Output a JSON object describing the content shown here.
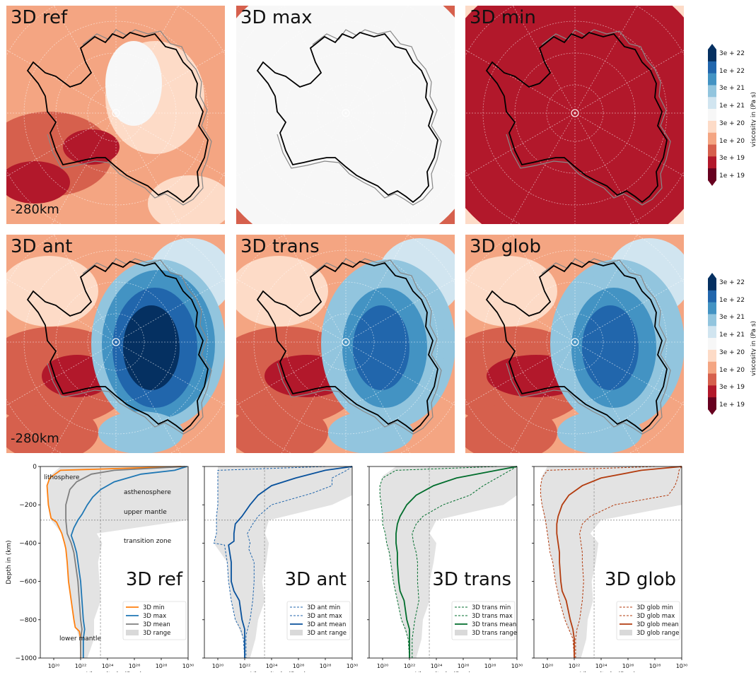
{
  "maps": {
    "row1": [
      {
        "label": "3D ref",
        "depth": "-280km",
        "pattern": "ref"
      },
      {
        "label": "3D max",
        "depth": "",
        "pattern": "max"
      },
      {
        "label": "3D min",
        "depth": "",
        "pattern": "min"
      }
    ],
    "row2": [
      {
        "label": "3D ant",
        "depth": "-280km",
        "pattern": "ant"
      },
      {
        "label": "3D trans",
        "depth": "",
        "pattern": "trans"
      },
      {
        "label": "3D glob",
        "depth": "",
        "pattern": "glob"
      }
    ]
  },
  "colorbar": {
    "title": "viscosity in (Pa s)",
    "ticks": [
      "3e + 22",
      "1e + 22",
      "3e + 21",
      "1e + 21",
      "3e + 20",
      "1e + 20",
      "3e + 19",
      "1e + 19"
    ],
    "colors": [
      "#053061",
      "#2166ac",
      "#4393c3",
      "#92c5de",
      "#d1e5f0",
      "#f7f7f7",
      "#fddbc7",
      "#f4a582",
      "#d6604d",
      "#b2182b",
      "#67001f"
    ]
  },
  "profile_labels": {
    "xlabel": "Viscosity in (Pa s)",
    "ylabel": "Depth in (km)",
    "yticks": [
      "0",
      "−200",
      "−400",
      "−600",
      "−800",
      "−1000"
    ],
    "xticks": [
      "10²⁰",
      "10²²",
      "10²⁴",
      "10²⁶",
      "10²⁸",
      "10³⁰"
    ],
    "annotations": [
      "lithosphere",
      "asthenosphere",
      "upper mantle",
      "transition zone",
      "lower  mantle"
    ]
  },
  "chart_data": [
    {
      "type": "line",
      "title": "3D ref",
      "xlabel": "Viscosity in (Pa s)",
      "ylabel": "Depth in (km)",
      "xscale": "log",
      "xlim": [
        1e+19,
        1e+30
      ],
      "ylim": [
        -1000,
        0
      ],
      "reference_lines": {
        "vertical_x": 3e+23,
        "horizontal_y": -280
      },
      "legend": "bottom-right",
      "series": [
        {
          "name": "3D min",
          "color": "#ff7f0e",
          "style": "solid",
          "depth": [
            0,
            -20,
            -40,
            -60,
            -100,
            -200,
            -270,
            -290,
            -350,
            -400,
            -430,
            -500,
            -600,
            -700,
            -800,
            -840,
            -860,
            -900,
            -1000
          ],
          "log_visc": [
            29.5,
            20.5,
            20.1,
            19.7,
            19.5,
            19.6,
            19.8,
            20.2,
            20.6,
            20.8,
            20.9,
            21.0,
            21.1,
            21.3,
            21.5,
            21.6,
            21.9,
            22.0,
            22.0
          ]
        },
        {
          "name": "3D max",
          "color": "#1f77b4",
          "style": "solid",
          "depth": [
            0,
            -20,
            -40,
            -80,
            -120,
            -160,
            -200,
            -250,
            -280,
            -320,
            -360,
            -400,
            -450,
            -500,
            -600,
            -700,
            -800,
            -850,
            -900,
            -1000
          ],
          "log_visc": [
            29.9,
            29.0,
            26.5,
            24.5,
            23.5,
            22.9,
            22.5,
            22.1,
            21.8,
            21.5,
            21.3,
            21.5,
            21.7,
            21.8,
            22.0,
            22.1,
            22.2,
            22.3,
            22.2,
            22.2
          ]
        },
        {
          "name": "3D mean",
          "color": "#7f7f7f",
          "style": "solid",
          "depth": [
            0,
            -20,
            -40,
            -80,
            -120,
            -200,
            -280,
            -350,
            -400,
            -450,
            -500,
            -600,
            -700,
            -800,
            -850,
            -900,
            -1000
          ],
          "log_visc": [
            29.8,
            24.5,
            22.8,
            21.7,
            21.2,
            20.9,
            20.9,
            21.0,
            21.3,
            21.5,
            21.6,
            21.8,
            21.9,
            22.0,
            22.1,
            22.0,
            22.0
          ]
        }
      ],
      "range": {
        "name": "3D range",
        "depth": [
          0,
          -50,
          -100,
          -150,
          -200,
          -280,
          -350,
          -400,
          -500,
          -600,
          -700,
          -800,
          -900,
          -1000
        ],
        "log_min": [
          20.5,
          19.7,
          19.5,
          19.5,
          19.6,
          19.8,
          20.6,
          20.8,
          21.0,
          21.1,
          21.3,
          21.5,
          21.9,
          22.0
        ],
        "log_max": [
          30.0,
          30.0,
          30.0,
          30.0,
          30.0,
          30.0,
          23.2,
          23.6,
          23.3,
          23.4,
          23.5,
          23.0,
          23.0,
          22.5
        ]
      }
    },
    {
      "type": "line",
      "title": "3D ant",
      "xlabel": "Viscosity in (Pa s)",
      "xscale": "log",
      "xlim": [
        1e+19,
        1e+30
      ],
      "ylim": [
        -1000,
        0
      ],
      "reference_lines": {
        "vertical_x": 3e+23,
        "horizontal_y": -280
      },
      "legend": "bottom-right",
      "series": [
        {
          "name": "3D ant min",
          "color": "#2166ac",
          "style": "dashed",
          "depth": [
            0,
            -20,
            -60,
            -100,
            -150,
            -200,
            -260,
            -300,
            -350,
            -400,
            -410,
            -500,
            -600,
            -700,
            -800,
            -850,
            -900,
            -1000
          ],
          "log_visc": [
            28.0,
            20.0,
            20.0,
            20.0,
            20.0,
            20.0,
            19.9,
            19.9,
            19.9,
            19.7,
            20.5,
            20.7,
            20.8,
            21.0,
            21.3,
            21.7,
            21.9,
            22.0
          ]
        },
        {
          "name": "3D ant max",
          "color": "#2166ac",
          "style": "dashed",
          "depth": [
            0,
            -20,
            -60,
            -100,
            -140,
            -200,
            -260,
            -300,
            -350,
            -400,
            -430,
            -500,
            -600,
            -700,
            -800,
            -880,
            -1000
          ],
          "log_visc": [
            30.0,
            29.6,
            28.5,
            28.5,
            27.0,
            24.0,
            23.0,
            22.6,
            22.2,
            22.4,
            22.3,
            22.7,
            22.7,
            22.6,
            22.4,
            22.1,
            22.1
          ]
        },
        {
          "name": "3D ant mean",
          "color": "#08519c",
          "style": "solid",
          "depth": [
            0,
            -20,
            -60,
            -100,
            -150,
            -200,
            -260,
            -300,
            -350,
            -390,
            -410,
            -500,
            -600,
            -650,
            -700,
            -800,
            -850,
            -900,
            -1000
          ],
          "log_visc": [
            30.0,
            28.0,
            25.8,
            24.0,
            23.0,
            22.4,
            21.8,
            21.3,
            21.2,
            21.2,
            20.8,
            21.0,
            21.0,
            21.2,
            21.6,
            21.8,
            22.0,
            22.0,
            22.0
          ]
        }
      ],
      "range": {
        "name": "3D ant range",
        "depth": [
          0,
          -50,
          -100,
          -150,
          -200,
          -280,
          -350,
          -400,
          -500,
          -600,
          -700,
          -800,
          -900,
          -1000
        ],
        "log_min": [
          20.0,
          20.0,
          20.0,
          20.0,
          20.0,
          19.9,
          19.9,
          19.7,
          20.7,
          20.8,
          21.0,
          21.3,
          21.9,
          22.0
        ],
        "log_max": [
          30.0,
          30.0,
          30.0,
          30.0,
          28.5,
          23.8,
          23.5,
          23.8,
          23.6,
          23.3,
          23.5,
          23.0,
          22.8,
          22.4
        ]
      }
    },
    {
      "type": "line",
      "title": "3D trans",
      "xlabel": "Viscosity in (Pa s)",
      "xscale": "log",
      "xlim": [
        1e+19,
        1e+30
      ],
      "ylim": [
        -1000,
        0
      ],
      "reference_lines": {
        "vertical_x": 3e+23,
        "horizontal_y": -280
      },
      "legend": "bottom-right",
      "series": [
        {
          "name": "3D trans min",
          "color": "#006d2c",
          "style": "dashed",
          "depth": [
            0,
            -20,
            -60,
            -100,
            -150,
            -200,
            -260,
            -300,
            -350,
            -400,
            -450,
            -500,
            -600,
            -700,
            -800,
            -850,
            -900,
            -1000
          ],
          "log_visc": [
            28.5,
            21.0,
            20.0,
            19.8,
            19.8,
            19.9,
            20.0,
            20.0,
            20.2,
            20.3,
            20.5,
            20.6,
            20.8,
            21.1,
            21.4,
            21.7,
            21.9,
            22.0
          ]
        },
        {
          "name": "3D trans max",
          "color": "#006d2c",
          "style": "dashed",
          "depth": [
            0,
            -20,
            -60,
            -100,
            -150,
            -200,
            -260,
            -300,
            -350,
            -400,
            -450,
            -500,
            -600,
            -700,
            -800,
            -850,
            -900,
            -1000
          ],
          "log_visc": [
            30.0,
            29.5,
            28.5,
            27.5,
            26.5,
            24.5,
            23.0,
            22.5,
            22.2,
            22.3,
            22.5,
            22.6,
            22.6,
            22.7,
            22.4,
            22.3,
            22.2,
            22.2
          ]
        },
        {
          "name": "3D trans mean",
          "color": "#006d2c",
          "style": "solid",
          "depth": [
            0,
            -20,
            -60,
            -100,
            -150,
            -200,
            -260,
            -300,
            -350,
            -400,
            -450,
            -500,
            -600,
            -650,
            -700,
            -800,
            -850,
            -900,
            -1000
          ],
          "log_visc": [
            30.0,
            28.5,
            25.5,
            23.8,
            22.5,
            21.8,
            21.3,
            21.1,
            21.0,
            21.0,
            21.1,
            21.1,
            21.2,
            21.3,
            21.6,
            21.8,
            22.0,
            22.0,
            22.0
          ]
        }
      ],
      "range": {
        "name": "3D trans range",
        "depth": [
          0,
          -50,
          -100,
          -150,
          -200,
          -280,
          -350,
          -400,
          -500,
          -600,
          -700,
          -800,
          -900,
          -1000
        ],
        "log_min": [
          21.0,
          20.0,
          19.8,
          19.8,
          19.9,
          20.0,
          20.2,
          20.3,
          20.6,
          20.8,
          21.1,
          21.4,
          21.9,
          22.0
        ],
        "log_max": [
          30.0,
          30.0,
          30.0,
          30.0,
          29.0,
          24.0,
          23.5,
          24.0,
          23.8,
          23.5,
          23.5,
          23.0,
          22.9,
          22.5
        ]
      }
    },
    {
      "type": "line",
      "title": "3D glob",
      "xlabel": "Viscosity in (Pa s)",
      "xscale": "log",
      "xlim": [
        1e+19,
        1e+30
      ],
      "ylim": [
        -1000,
        0
      ],
      "reference_lines": {
        "vertical_x": 3e+23,
        "horizontal_y": -280
      },
      "legend": "bottom-right",
      "series": [
        {
          "name": "3D glob min",
          "color": "#b33c0f",
          "style": "dashed",
          "depth": [
            0,
            -20,
            -60,
            -100,
            -150,
            -200,
            -260,
            -300,
            -350,
            -400,
            -450,
            -500,
            -600,
            -700,
            -800,
            -850,
            -900,
            -1000
          ],
          "log_visc": [
            28.0,
            20.0,
            19.6,
            19.5,
            19.5,
            19.6,
            19.8,
            19.9,
            20.0,
            20.1,
            20.2,
            20.4,
            20.6,
            20.9,
            21.3,
            21.6,
            21.9,
            22.0
          ]
        },
        {
          "name": "3D glob max",
          "color": "#b33c0f",
          "style": "dashed",
          "depth": [
            0,
            -20,
            -60,
            -100,
            -150,
            -200,
            -260,
            -300,
            -350,
            -400,
            -450,
            -500,
            -600,
            -700,
            -800,
            -850,
            -900,
            -1000
          ],
          "log_visc": [
            30.0,
            29.8,
            29.7,
            29.5,
            29.0,
            25.0,
            23.2,
            22.6,
            22.4,
            22.5,
            22.6,
            22.6,
            22.7,
            22.6,
            22.4,
            22.2,
            22.1,
            22.1
          ]
        },
        {
          "name": "3D glob mean",
          "color": "#b33c0f",
          "style": "solid",
          "depth": [
            0,
            -20,
            -60,
            -100,
            -150,
            -200,
            -260,
            -300,
            -350,
            -400,
            -450,
            -500,
            -600,
            -650,
            -700,
            -800,
            -850,
            -900,
            -1000
          ],
          "log_visc": [
            30.0,
            27.0,
            24.0,
            22.6,
            21.6,
            21.1,
            20.8,
            20.7,
            20.7,
            20.8,
            20.9,
            20.9,
            21.0,
            21.1,
            21.4,
            21.7,
            21.9,
            22.0,
            22.0
          ]
        }
      ],
      "range": {
        "name": "3D glob range",
        "depth": [
          0,
          -50,
          -100,
          -150,
          -200,
          -280,
          -350,
          -400,
          -500,
          -600,
          -700,
          -800,
          -900,
          -1000
        ],
        "log_min": [
          20.0,
          19.6,
          19.5,
          19.5,
          19.6,
          19.8,
          20.0,
          20.1,
          20.4,
          20.6,
          20.9,
          21.3,
          21.9,
          22.0
        ],
        "log_max": [
          30.0,
          30.0,
          30.0,
          30.0,
          30.0,
          24.0,
          23.2,
          23.8,
          23.6,
          23.3,
          23.4,
          23.0,
          22.9,
          22.5
        ]
      }
    }
  ]
}
